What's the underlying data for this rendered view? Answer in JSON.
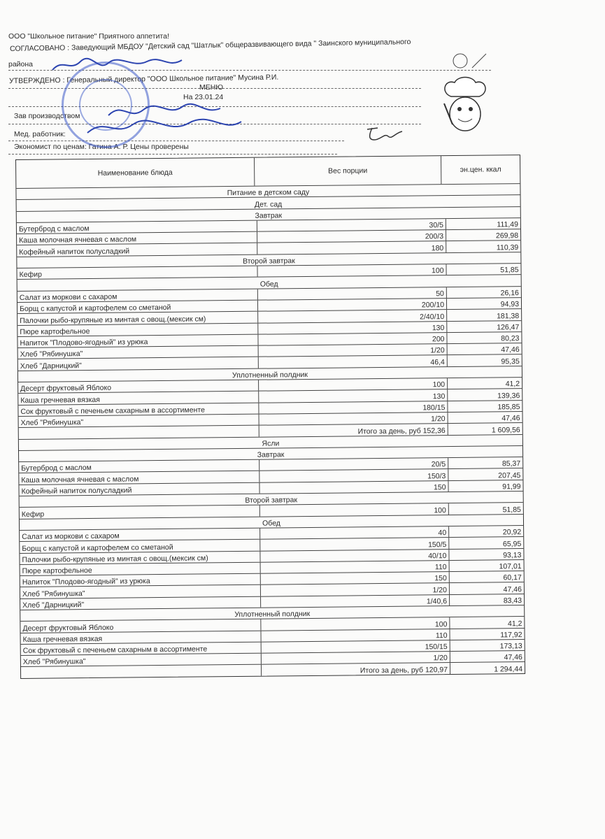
{
  "header": {
    "company": "ООО \"Школьное питание\" Приятного аппетита!",
    "agreed_line": "СОГЛАСОВАНО : Заведующий МБДОУ \"Детский сад \"Шатлык\" общеразвивающего вида \" Заинского муниципального",
    "agreed_line2": "района",
    "approved": "УТВЕРЖДЕНО : Генеральный директор \"ООО Школьное питание\" Мусина Р.И.",
    "menu_title": "МЕНЮ",
    "menu_date": "На 23.01.24",
    "production_head": "Зав производством",
    "medic": "Мед. работник:",
    "economist": "Экономист по ценам: Гатина А. Р. Цены проверены"
  },
  "table": {
    "columns": [
      "Наименование блюда",
      "Вес порции",
      "эн.цен. ккал"
    ],
    "title": "Питание в детском саду",
    "sections": [
      {
        "name": "Дет. сад",
        "meals": [
          {
            "name": "Завтрак",
            "items": [
              {
                "dish": "Бутерброд с маслом",
                "weight": "30/5",
                "kcal": "111,49"
              },
              {
                "dish": "Каша молочная ячневая с маслом",
                "weight": "200/3",
                "kcal": "269,98"
              },
              {
                "dish": "Кофейный напиток полусладкий",
                "weight": "180",
                "kcal": "110,39"
              }
            ]
          },
          {
            "name": "Второй завтрак",
            "items": [
              {
                "dish": "Кефир",
                "weight": "100",
                "kcal": "51,85"
              }
            ]
          },
          {
            "name": "Обед",
            "items": [
              {
                "dish": "Салат из моркови с сахаром",
                "weight": "50",
                "kcal": "26,16"
              },
              {
                "dish": "Борщ с капустой и картофелем со сметаной",
                "weight": "200/10",
                "kcal": "94,93"
              },
              {
                "dish": "Палочки рыбо-крупяные из минтая с овощ.(мексик см)",
                "weight": "2/40/10",
                "kcal": "181,38"
              },
              {
                "dish": "Пюре картофельное",
                "weight": "130",
                "kcal": "126,47"
              },
              {
                "dish": "Напиток \"Плодово-ягодный\" из урюка",
                "weight": "200",
                "kcal": "80,23"
              },
              {
                "dish": "Хлеб \"Рябинушка\"",
                "weight": "1/20",
                "kcal": "47,46"
              },
              {
                "dish": "Хлеб \"Дарницкий\"",
                "weight": "46,4",
                "kcal": "95,35"
              }
            ]
          },
          {
            "name": "Уплотненный полдник",
            "items": [
              {
                "dish": "Десерт фруктовый Яблоко",
                "weight": "100",
                "kcal": "41,2"
              },
              {
                "dish": "Каша гречневая вязкая",
                "weight": "130",
                "kcal": "139,36"
              },
              {
                "dish": "Сок фруктовый  с печеньем сахарным в ассортименте",
                "weight": "180/15",
                "kcal": "185,85"
              },
              {
                "dish": "Хлеб \"Рябинушка\"",
                "weight": "1/20",
                "kcal": "47,46"
              }
            ]
          }
        ],
        "total_label": "Итого за день, руб 152,36",
        "total_kcal": "1 609,56"
      },
      {
        "name": "Ясли",
        "meals": [
          {
            "name": "Завтрак",
            "items": [
              {
                "dish": "Бутерброд с маслом",
                "weight": "20/5",
                "kcal": "85,37"
              },
              {
                "dish": "Каша молочная ячневая с маслом",
                "weight": "150/3",
                "kcal": "207,45"
              },
              {
                "dish": "Кофейный напиток полусладкий",
                "weight": "150",
                "kcal": "91,99"
              }
            ]
          },
          {
            "name": "Второй завтрак",
            "items": [
              {
                "dish": "Кефир",
                "weight": "100",
                "kcal": "51,85"
              }
            ]
          },
          {
            "name": "Обед",
            "items": [
              {
                "dish": "Салат из моркови с сахаром",
                "weight": "40",
                "kcal": "20,92"
              },
              {
                "dish": "Борщ с капустой и картофелем со сметаной",
                "weight": "150/5",
                "kcal": "65,95"
              },
              {
                "dish": "Палочки рыбо-крупяные из минтая с овощ.(мексик см)",
                "weight": "40/10",
                "kcal": "93,13"
              },
              {
                "dish": "Пюре картофельное",
                "weight": "110",
                "kcal": "107,01"
              },
              {
                "dish": "Напиток \"Плодово-ягодный\" из урюка",
                "weight": "150",
                "kcal": "60,17"
              },
              {
                "dish": "Хлеб \"Рябинушка\"",
                "weight": "1/20",
                "kcal": "47,46"
              },
              {
                "dish": "Хлеб \"Дарницкий\"",
                "weight": "1/40,6",
                "kcal": "83,43"
              }
            ]
          },
          {
            "name": "Уплотненный полдник",
            "items": [
              {
                "dish": "Десерт фруктовый Яблоко",
                "weight": "100",
                "kcal": "41,2"
              },
              {
                "dish": "Каша гречневая вязкая",
                "weight": "110",
                "kcal": "117,92"
              },
              {
                "dish": "Сок фруктовый  с печеньем сахарным в ассортименте",
                "weight": "150/15",
                "kcal": "173,13"
              },
              {
                "dish": "Хлеб \"Рябинушка\"",
                "weight": "1/20",
                "kcal": "47,46"
              }
            ]
          }
        ],
        "total_label": "Итого за день, руб 120,97",
        "total_kcal": "1 294,44"
      }
    ]
  },
  "colors": {
    "ink": "#2a2a2a",
    "stamp": "#3c5ac8",
    "signature": "#2c44b0"
  }
}
